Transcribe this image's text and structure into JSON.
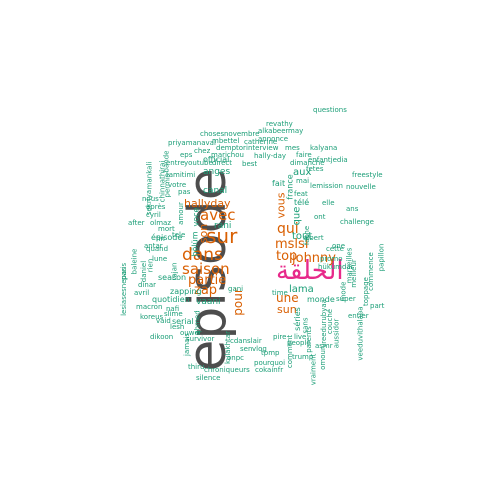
{
  "colors": {
    "large": "#4d4d4d",
    "orange": "#d95f02",
    "magenta": "#e7298a",
    "teal": "#1b9e77"
  },
  "words": [
    {
      "text": "episode",
      "color": "large"
    },
    {
      "text": "الحلقة",
      "color": "magenta"
    },
    {
      "text": "sur",
      "color": "orange"
    },
    {
      "text": "dans",
      "color": "orange"
    },
    {
      "text": "saison",
      "color": "orange"
    },
    {
      "text": "avec",
      "color": "orange"
    },
    {
      "text": "partie",
      "color": "orange"
    },
    {
      "text": "zap",
      "color": "orange"
    },
    {
      "text": "hallyday",
      "color": "orange"
    },
    {
      "text": "johnny",
      "color": "orange"
    },
    {
      "text": "top",
      "color": "orange"
    },
    {
      "text": "qui",
      "color": "orange"
    },
    {
      "text": "mslsl",
      "color": "orange"
    },
    {
      "text": "une",
      "color": "orange"
    },
    {
      "text": "sun",
      "color": "orange"
    },
    {
      "text": "pour",
      "color": "orange"
    },
    {
      "text": "vous",
      "color": "orange"
    },
    {
      "text": "son",
      "color": "orange"
    },
    {
      "text": "tout",
      "color": "teal"
    },
    {
      "text": "que",
      "color": "teal"
    },
    {
      "text": "lama",
      "color": "teal"
    },
    {
      "text": "aux",
      "color": "teal"
    },
    {
      "text": "rani",
      "color": "teal"
    },
    {
      "text": "canal",
      "color": "teal"
    },
    {
      "text": "anges",
      "color": "teal"
    },
    {
      "text": "official",
      "color": "teal"
    },
    {
      "text": "serial",
      "color": "teal"
    },
    {
      "text": "vaani",
      "color": "teal"
    },
    {
      "text": "zapping",
      "color": "teal"
    },
    {
      "text": "quotidien",
      "color": "teal"
    },
    {
      "text": "season",
      "color": "teal"
    },
    {
      "text": "monde",
      "color": "teal"
    },
    {
      "text": "séries",
      "color": "teal"
    },
    {
      "text": "france",
      "color": "teal"
    },
    {
      "text": "télé",
      "color": "teal"
    },
    {
      "text": "fait",
      "color": "teal"
    },
    {
      "text": "voce",
      "color": "teal"
    },
    {
      "text": "bölüm",
      "color": "teal"
    },
    {
      "text": "mai",
      "color": "teal"
    },
    {
      "text": "faire",
      "color": "teal"
    },
    {
      "text": "dimanche",
      "color": "teal"
    },
    {
      "text": "lemission",
      "color": "teal"
    },
    {
      "text": "fache",
      "color": "teal"
    },
    {
      "text": "elle",
      "color": "teal"
    },
    {
      "text": "nouvelle",
      "color": "teal"
    },
    {
      "text": "freestyle",
      "color": "teal"
    },
    {
      "text": "challenge",
      "color": "teal"
    },
    {
      "text": "part",
      "color": "teal"
    },
    {
      "text": "papillon",
      "color": "teal"
    },
    {
      "text": "commence",
      "color": "teal"
    },
    {
      "text": "super",
      "color": "teal"
    },
    {
      "text": "entier",
      "color": "teal"
    },
    {
      "text": "promo",
      "color": "teal"
    },
    {
      "text": "hükümdar",
      "color": "teal"
    },
    {
      "text": "cette",
      "color": "teal"
    },
    {
      "text": "asmr",
      "color": "teal"
    },
    {
      "text": "tpmp",
      "color": "teal"
    },
    {
      "text": "vlog",
      "color": "teal"
    },
    {
      "text": "pourquoi",
      "color": "teal"
    },
    {
      "text": "cokainfr",
      "color": "teal"
    },
    {
      "text": "chroniqueurs",
      "color": "teal"
    },
    {
      "text": "silence",
      "color": "teal"
    },
    {
      "text": "thiru",
      "color": "teal"
    },
    {
      "text": "dikoon",
      "color": "teal"
    },
    {
      "text": "koreus",
      "color": "teal"
    },
    {
      "text": "macron",
      "color": "teal"
    },
    {
      "text": "avril",
      "color": "teal"
    },
    {
      "text": "nafi",
      "color": "teal"
    },
    {
      "text": "slime",
      "color": "teal"
    },
    {
      "text": "survivor",
      "color": "teal"
    },
    {
      "text": "onpc",
      "color": "teal"
    },
    {
      "text": "kulakhtar",
      "color": "teal"
    },
    {
      "text": "trump",
      "color": "teal"
    },
    {
      "text": "live",
      "color": "teal"
    },
    {
      "text": "people",
      "color": "teal"
    },
    {
      "text": "pire",
      "color": "teal"
    },
    {
      "text": "comment",
      "color": "teal"
    },
    {
      "text": "time",
      "color": "teal"
    },
    {
      "text": "cdanslair",
      "color": "teal"
    },
    {
      "text": "direct",
      "color": "teal"
    },
    {
      "text": "best",
      "color": "teal"
    },
    {
      "text": "marichou",
      "color": "teal"
    },
    {
      "text": "hally-day",
      "color": "teal"
    },
    {
      "text": "interview",
      "color": "teal"
    },
    {
      "text": "demptor",
      "color": "teal"
    },
    {
      "text": "mbettel",
      "color": "teal"
    },
    {
      "text": "catherine",
      "color": "teal"
    },
    {
      "text": "choses",
      "color": "teal"
    },
    {
      "text": "novembre",
      "color": "teal"
    },
    {
      "text": "alkabeer",
      "color": "teal"
    },
    {
      "text": "annonce",
      "color": "teal"
    },
    {
      "text": "revathy",
      "color": "teal"
    },
    {
      "text": "may",
      "color": "teal"
    },
    {
      "text": "priyamanaval",
      "color": "teal"
    },
    {
      "text": "chez",
      "color": "teal"
    },
    {
      "text": "eps",
      "color": "teal"
    },
    {
      "text": "youtube",
      "color": "teal"
    },
    {
      "text": "entre",
      "color": "teal"
    },
    {
      "text": "tamitimi",
      "color": "teal"
    },
    {
      "text": "mes",
      "color": "teal"
    },
    {
      "text": "kalyana",
      "color": "teal"
    },
    {
      "text": "enfantjedia",
      "color": "teal"
    },
    {
      "text": "questions",
      "color": "teal"
    },
    {
      "text": "fetes",
      "color": "teal"
    },
    {
      "text": "feat",
      "color": "teal"
    },
    {
      "text": "ans",
      "color": "teal"
    },
    {
      "text": "ont",
      "color": "teal"
    },
    {
      "text": "albert",
      "color": "teal"
    },
    {
      "text": "one",
      "color": "teal"
    },
    {
      "text": "mode",
      "color": "teal"
    },
    {
      "text": "meilleur",
      "color": "teal"
    },
    {
      "text": "marseilles",
      "color": "teal"
    },
    {
      "text": "toppage",
      "color": "teal"
    },
    {
      "text": "sans",
      "color": "teal"
    },
    {
      "text": "parents",
      "color": "teal"
    },
    {
      "text": "vreedurubyaa",
      "color": "teal"
    },
    {
      "text": "couché",
      "color": "teal"
    },
    {
      "text": "aussidor",
      "color": "teal"
    },
    {
      "text": "veeduvithalapa",
      "color": "teal"
    },
    {
      "text": "jamais",
      "color": "teal"
    },
    {
      "text": "vraiment",
      "color": "teal"
    },
    {
      "text": "omour",
      "color": "teal"
    },
    {
      "text": "gani",
      "color": "teal"
    },
    {
      "text": "sen",
      "color": "teal"
    },
    {
      "text": "after",
      "color": "teal"
    },
    {
      "text": "paris",
      "color": "teal"
    },
    {
      "text": "nous",
      "color": "teal"
    },
    {
      "text": "après",
      "color": "teal"
    },
    {
      "text": "cyril",
      "color": "teal"
    },
    {
      "text": "olmaz",
      "color": "teal"
    },
    {
      "text": "permis",
      "color": "teal"
    },
    {
      "text": "votre",
      "color": "teal"
    },
    {
      "text": "pas",
      "color": "teal"
    },
    {
      "text": "bande",
      "color": "teal"
    },
    {
      "text": "mankali",
      "color": "teal"
    },
    {
      "text": "chinnathirai",
      "color": "teal"
    },
    {
      "text": "sekriya",
      "color": "teal"
    },
    {
      "text": "baleine",
      "color": "teal"
    },
    {
      "text": "lesiasesnepas",
      "color": "teal"
    },
    {
      "text": "mort",
      "color": "teal"
    },
    {
      "text": "tele",
      "color": "teal"
    },
    {
      "text": "amour",
      "color": "teal"
    },
    {
      "text": "quand",
      "color": "teal"
    },
    {
      "text": "fin",
      "color": "teal"
    },
    {
      "text": "lune",
      "color": "teal"
    },
    {
      "text": "rien",
      "color": "teal"
    },
    {
      "text": "dinar",
      "color": "teal"
    },
    {
      "text": "épisode",
      "color": "teal"
    },
    {
      "text": "daniel",
      "color": "teal"
    },
    {
      "text": "antar",
      "color": "teal"
    },
    {
      "text": "vaid",
      "color": "teal"
    },
    {
      "text": "rajan",
      "color": "teal"
    },
    {
      "text": "lesh",
      "color": "teal"
    },
    {
      "text": "ouwer",
      "color": "teal"
    },
    {
      "text": "ahmed",
      "color": "teal"
    }
  ]
}
